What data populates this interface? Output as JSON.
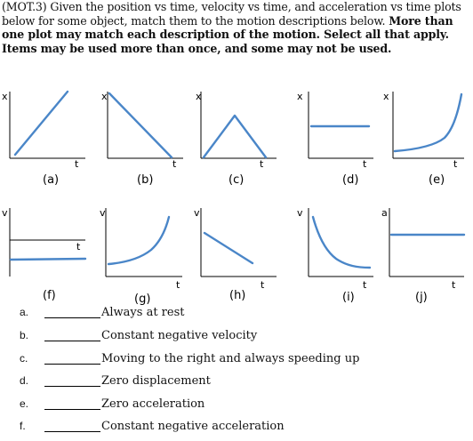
{
  "problem": {
    "code": "(MOT.3)",
    "text": "Given the position vs time, velocity vs time, and acceleration vs time plots below for some object, match them to the motion descriptions below.",
    "bold_text": "More than one plot may match each description of the motion. Select all that apply. Items may be used more than once, and some may not be used."
  },
  "graphs": [
    {
      "label": "(a)",
      "y_axis": "x",
      "t_axis": "t",
      "shape": "straight line rising from origin"
    },
    {
      "label": "(b)",
      "y_axis": "x",
      "t_axis": "t",
      "shape": "straight line falling to zero"
    },
    {
      "label": "(c)",
      "y_axis": "x",
      "t_axis": "t",
      "shape": "rises linearly then falls linearly back to zero"
    },
    {
      "label": "(d)",
      "y_axis": "x",
      "t_axis": "t",
      "shape": "horizontal line"
    },
    {
      "label": "(e)",
      "y_axis": "x",
      "t_axis": "t",
      "shape": "curve increasing ever more steeply"
    },
    {
      "label": "(f)",
      "y_axis": "v",
      "t_axis": "t",
      "shape": "horizontal line below zero"
    },
    {
      "label": "(g)",
      "y_axis": "v",
      "t_axis": "t",
      "shape": "curve increasing ever more steeply"
    },
    {
      "label": "(h)",
      "y_axis": "v",
      "t_axis": "t",
      "shape": "straight line decreasing"
    },
    {
      "label": "(i)",
      "y_axis": "v",
      "t_axis": "t",
      "shape": "curve decreasing and leveling off"
    },
    {
      "label": "(j)",
      "y_axis": "a",
      "t_axis": "t",
      "shape": "horizontal line above zero"
    }
  ],
  "descriptions": [
    {
      "letter": "a.",
      "text": "Always at rest"
    },
    {
      "letter": "b.",
      "text": "Constant negative velocity"
    },
    {
      "letter": "c.",
      "text": "Moving to the right and always speeding up"
    },
    {
      "letter": "d.",
      "text": "Zero displacement"
    },
    {
      "letter": "e.",
      "text": "Zero acceleration"
    },
    {
      "letter": "f.",
      "text": "Constant negative acceleration"
    }
  ],
  "colors": {
    "curve": "#4a86c8",
    "axes": "#000000",
    "text": "#111111"
  }
}
